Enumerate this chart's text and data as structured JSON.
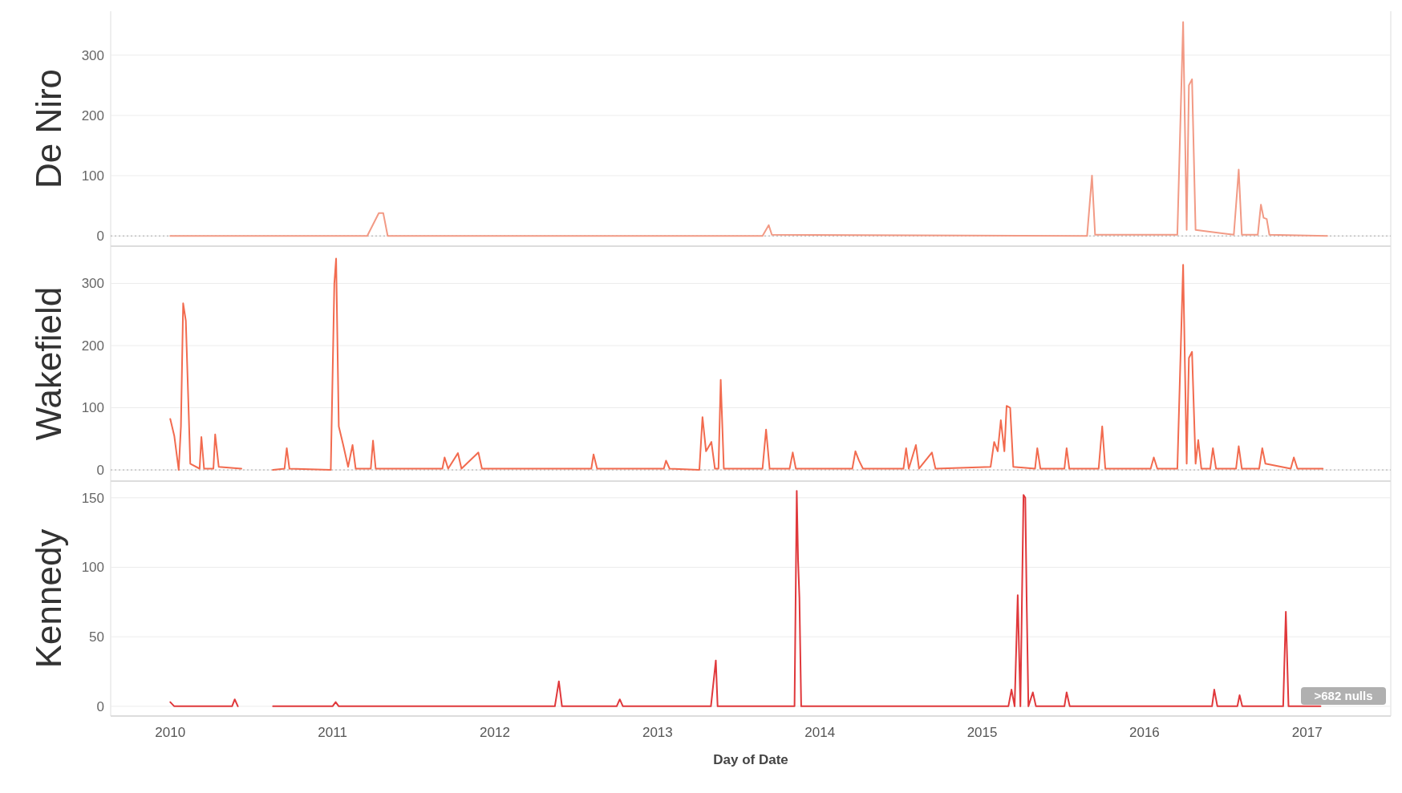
{
  "chart_data": [
    {
      "type": "line",
      "ylabel": "De Niro",
      "xlim": [
        "2009-08-20",
        "2017-07-08"
      ],
      "ylim": [
        -17,
        373
      ],
      "yticks": [
        0,
        100,
        200,
        300
      ],
      "grid": "y",
      "tick_labels": "y",
      "ref_lines": [
        {
          "axis": "y",
          "value": 0,
          "color": "#aaaaaa",
          "line_style": "dotted"
        }
      ],
      "series": [
        {
          "color": "#f29a85",
          "x": [
            "2010-01-01",
            "2011-03-20",
            "2011-04-15",
            "2011-04-25",
            "2011-05-05",
            "2013-08-25",
            "2013-09-08",
            "2013-09-15",
            "2015-08-25",
            "2015-09-05",
            "2015-09-12",
            "2016-03-15",
            "2016-03-28",
            "2016-04-05",
            "2016-04-10",
            "2016-04-17",
            "2016-04-25",
            "2016-07-20",
            "2016-07-27",
            "2016-07-31",
            "2016-08-07",
            "2016-09-12",
            "2016-09-19",
            "2016-09-25",
            "2016-10-02",
            "2016-10-08",
            "2017-02-15"
          ],
          "values": [
            0,
            0,
            38,
            38,
            0,
            0,
            18,
            2,
            0,
            100,
            2,
            2,
            355,
            10,
            250,
            260,
            10,
            2,
            70,
            110,
            2,
            2,
            52,
            30,
            28,
            2,
            0
          ]
        }
      ]
    },
    {
      "type": "line",
      "ylabel": "Wakefield",
      "xlim": [
        "2009-08-20",
        "2017-07-08"
      ],
      "ylim": [
        -18,
        360
      ],
      "yticks": [
        0,
        100,
        200,
        300
      ],
      "grid": "y",
      "tick_labels": "y",
      "ref_lines": [
        {
          "axis": "y",
          "value": 0,
          "color": "#aaaaaa",
          "line_style": "dotted"
        }
      ],
      "series": [
        {
          "color": "#f26b4f",
          "x": [
            "2010-01-01",
            "2010-01-10",
            "2010-01-20",
            "2010-01-25",
            "2010-01-30",
            "2010-02-05",
            "2010-02-15",
            "2010-03-08",
            "2010-03-12",
            "2010-03-18",
            "2010-04-08",
            "2010-04-12",
            "2010-04-20",
            "2010-06-10",
            "2010-06-11",
            "2010-08-20",
            "2010-09-15",
            "2010-09-20",
            "2010-09-26",
            "2010-12-28",
            "2011-01-05",
            "2011-01-09",
            "2011-01-15",
            "2011-01-25",
            "2011-02-05",
            "2011-02-15",
            "2011-02-22",
            "2011-03-28",
            "2011-04-02",
            "2011-04-08",
            "2011-09-05",
            "2011-09-10",
            "2011-09-18",
            "2011-10-10",
            "2011-10-18",
            "2011-11-25",
            "2011-12-03",
            "2012-08-05",
            "2012-08-10",
            "2012-08-18",
            "2013-01-15",
            "2013-01-20",
            "2013-01-28",
            "2013-04-05",
            "2013-04-12",
            "2013-04-20",
            "2013-05-02",
            "2013-05-10",
            "2013-05-18",
            "2013-05-23",
            "2013-05-30",
            "2013-08-25",
            "2013-09-02",
            "2013-09-10",
            "2013-10-25",
            "2013-11-01",
            "2013-11-08",
            "2014-03-15",
            "2014-03-22",
            "2014-03-30",
            "2014-04-08",
            "2014-07-08",
            "2014-07-14",
            "2014-07-20",
            "2014-08-05",
            "2014-08-12",
            "2014-09-10",
            "2014-09-18",
            "2015-01-20",
            "2015-01-28",
            "2015-02-05",
            "2015-02-12",
            "2015-02-20",
            "2015-02-25",
            "2015-03-05",
            "2015-03-12",
            "2015-04-30",
            "2015-05-05",
            "2015-05-12",
            "2015-07-05",
            "2015-07-10",
            "2015-07-16",
            "2015-09-20",
            "2015-09-28",
            "2015-10-05",
            "2016-01-15",
            "2016-01-22",
            "2016-01-30",
            "2016-03-15",
            "2016-03-28",
            "2016-04-05",
            "2016-04-10",
            "2016-04-17",
            "2016-04-25",
            "2016-05-01",
            "2016-05-08",
            "2016-05-28",
            "2016-06-03",
            "2016-06-10",
            "2016-07-25",
            "2016-07-31",
            "2016-08-07",
            "2016-09-15",
            "2016-09-22",
            "2016-09-29",
            "2016-11-25",
            "2016-12-02",
            "2016-12-10",
            "2017-02-05"
          ],
          "values": [
            82,
            55,
            0,
            70,
            268,
            240,
            10,
            2,
            53,
            2,
            2,
            57,
            5,
            2,
            null,
            0,
            2,
            35,
            2,
            0,
            300,
            340,
            70,
            40,
            5,
            40,
            2,
            2,
            47,
            2,
            2,
            20,
            2,
            27,
            2,
            28,
            2,
            2,
            25,
            2,
            2,
            15,
            2,
            0,
            85,
            30,
            45,
            2,
            2,
            145,
            2,
            2,
            65,
            2,
            2,
            28,
            2,
            2,
            30,
            15,
            2,
            2,
            35,
            2,
            40,
            2,
            28,
            2,
            5,
            45,
            30,
            80,
            30,
            103,
            100,
            5,
            2,
            35,
            2,
            2,
            35,
            2,
            2,
            70,
            2,
            2,
            20,
            2,
            2,
            330,
            10,
            180,
            190,
            10,
            48,
            2,
            2,
            35,
            2,
            2,
            38,
            2,
            2,
            35,
            10,
            2,
            20,
            2,
            2
          ]
        }
      ]
    },
    {
      "type": "line",
      "ylabel": "Kennedy",
      "xlabel": "Day of Date",
      "xlim": [
        "2009-08-20",
        "2017-07-08"
      ],
      "xticks": [
        "2010",
        "2011",
        "2012",
        "2013",
        "2014",
        "2015",
        "2016",
        "2017"
      ],
      "ylim": [
        -7,
        162
      ],
      "yticks": [
        0,
        50,
        100,
        150
      ],
      "grid": "y",
      "annotations": [
        ">682 nulls"
      ],
      "series": [
        {
          "color": "#e0383b",
          "x": [
            "2010-01-01",
            "2010-01-10",
            "2010-05-20",
            "2010-05-26",
            "2010-06-02",
            "2010-06-03",
            "2010-08-20",
            "2011-01-01",
            "2011-01-08",
            "2011-01-15",
            "2012-05-15",
            "2012-05-24",
            "2012-05-31",
            "2012-10-01",
            "2012-10-08",
            "2012-10-15",
            "2013-05-01",
            "2013-05-12",
            "2013-05-16",
            "2013-11-05",
            "2013-11-10",
            "2013-11-13",
            "2013-11-16",
            "2013-11-20",
            "2015-03-01",
            "2015-03-08",
            "2015-03-15",
            "2015-03-22",
            "2015-03-28",
            "2015-04-04",
            "2015-04-08",
            "2015-04-11",
            "2015-04-15",
            "2015-04-25",
            "2015-05-02",
            "2015-07-05",
            "2015-07-10",
            "2015-07-17",
            "2016-06-01",
            "2016-06-06",
            "2016-06-13",
            "2016-07-28",
            "2016-08-02",
            "2016-08-08",
            "2016-11-08",
            "2016-11-14",
            "2016-11-20",
            "2017-01-31"
          ],
          "values": [
            3,
            0,
            0,
            5,
            0,
            null,
            0,
            0,
            3,
            0,
            0,
            18,
            0,
            0,
            5,
            0,
            0,
            33,
            0,
            0,
            155,
            105,
            78,
            0,
            0,
            12,
            0,
            80,
            0,
            152,
            150,
            78,
            0,
            10,
            0,
            0,
            10,
            0,
            0,
            12,
            0,
            0,
            8,
            0,
            0,
            68,
            0,
            0
          ]
        }
      ]
    }
  ]
}
